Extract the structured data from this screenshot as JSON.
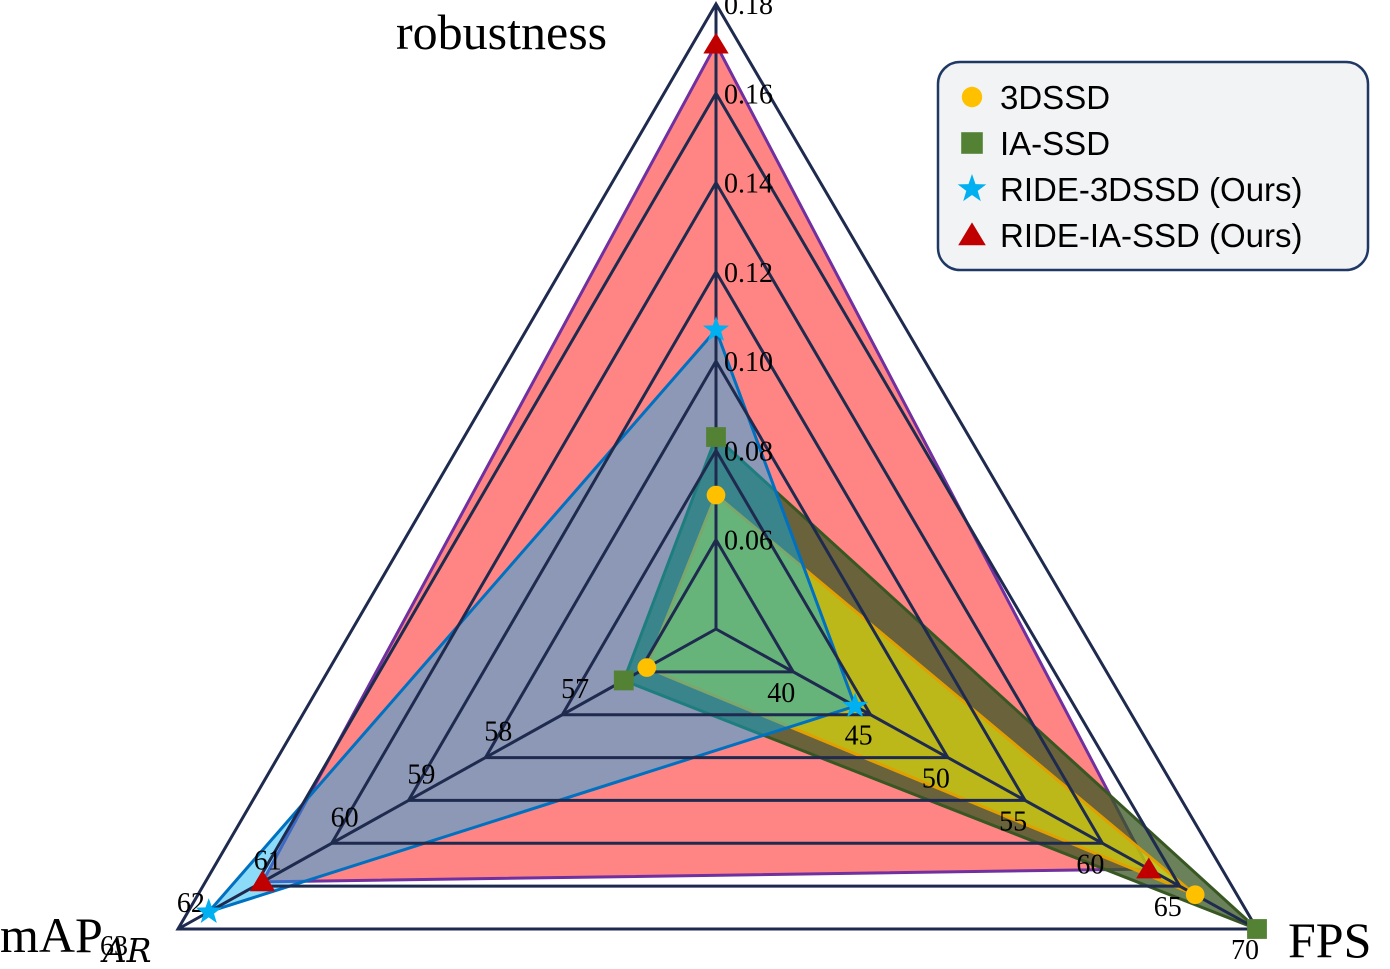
{
  "chart_data": {
    "type": "radar",
    "axes": [
      {
        "key": "robustness",
        "label": "robustness",
        "subscript": "",
        "min": 0.04,
        "max": 0.18,
        "ticks": [
          "0.06",
          "0.08",
          "0.10",
          "0.12",
          "0.14",
          "0.16",
          "0.18"
        ]
      },
      {
        "key": "fps",
        "label": "FPS",
        "subscript": "",
        "min": 35,
        "max": 70,
        "ticks": [
          "40",
          "45",
          "50",
          "55",
          "60",
          "65",
          "70"
        ]
      },
      {
        "key": "map",
        "label": "mAP",
        "subscript": "AR",
        "min": 56,
        "max": 63,
        "ticks": [
          "57",
          "58",
          "59",
          "60",
          "61",
          "62",
          "63"
        ]
      }
    ],
    "series": [
      {
        "name": "3DSSD",
        "marker": "circle",
        "color": "#FFC000",
        "fill": "#FFFF00",
        "fill_opacity": 0.55,
        "stroke": "#E0A000",
        "values": {
          "robustness": 0.07,
          "fps": 66,
          "map": 56.9
        }
      },
      {
        "name": "IA-SSD",
        "marker": "square",
        "color": "#548235",
        "fill": "#385723",
        "fill_opacity": 0.75,
        "stroke": "#385723",
        "values": {
          "robustness": 0.083,
          "fps": 70,
          "map": 57.2
        }
      },
      {
        "name": "RIDE-3DSSD (Ours)",
        "marker": "star",
        "color": "#00B0F0",
        "fill": "#00B0F0",
        "fill_opacity": 0.45,
        "stroke": "#0070C0",
        "values": {
          "robustness": 0.107,
          "fps": 44,
          "map": 62.6
        }
      },
      {
        "name": "RIDE-IA-SSD (Ours)",
        "marker": "triangle",
        "color": "#C00000",
        "fill": "#FF0000",
        "fill_opacity": 0.48,
        "stroke": "#7030A0",
        "values": {
          "robustness": 0.171,
          "fps": 63,
          "map": 61.9
        }
      }
    ],
    "draw_order": [
      "RIDE-IA-SSD (Ours)",
      "IA-SSD",
      "3DSSD",
      "RIDE-3DSSD (Ours)"
    ],
    "legend_position": "top-right",
    "grid": true
  }
}
